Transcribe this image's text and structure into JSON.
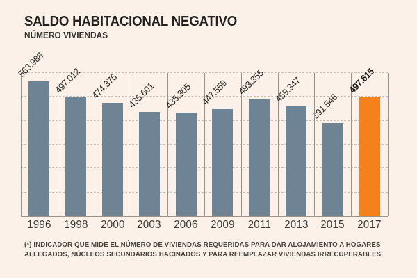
{
  "chart_data": {
    "type": "bar",
    "title": "SALDO HABITACIONAL NEGATIVO",
    "subtitle": "NÚMERO VIVIENDAS",
    "categories": [
      "1996",
      "1998",
      "2000",
      "2003",
      "2006",
      "2009",
      "2011",
      "2013",
      "2015",
      "2017"
    ],
    "values": [
      563988,
      497012,
      474375,
      435601,
      435305,
      447559,
      493355,
      459347,
      391546,
      497615
    ],
    "labels": [
      "563.988",
      "497.012",
      "474.375",
      "435.601",
      "435.305",
      "447.559",
      "493.355",
      "459.347",
      "391.546",
      "497.615"
    ],
    "highlight_index": 9,
    "ylim": [
      0,
      600000
    ],
    "grid_step": 100000,
    "grid": "dashed-horizontal",
    "column_separators": true,
    "legend": "none",
    "xlabel": "",
    "ylabel": "",
    "colors": {
      "background": "#fcf1e8",
      "bar": "#6e8495",
      "highlight": "#f5811d",
      "gridline": "#ccc2b6",
      "separator": "#96918a",
      "text": "#232220"
    }
  },
  "footnote": {
    "line1": "(*) INDICADOR QUE MIDE EL NÚMERO DE VIVIENDAS REQUERIDAS PARA DAR ALOJAMIENTO A HOGARES",
    "line2": "ALLEGADOS, NÚCLEOS SECUNDARIOS HACINADOS Y PARA REEMPLAZAR VIVIENDAS IRRECUPERABLES."
  }
}
